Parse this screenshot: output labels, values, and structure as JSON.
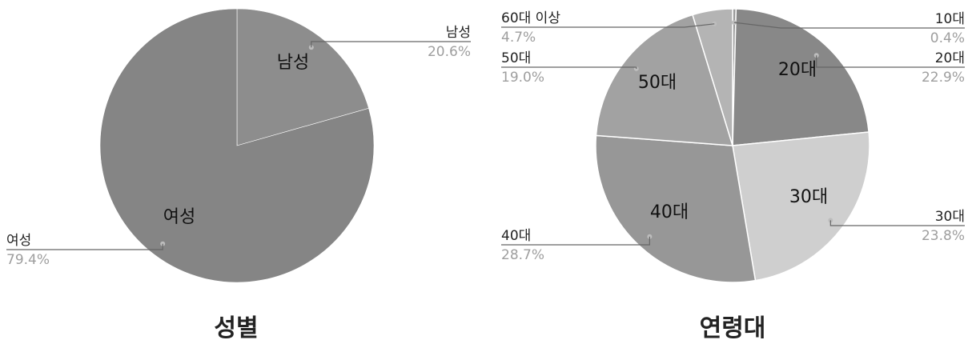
{
  "chart_data": [
    {
      "type": "pie",
      "title": "성별",
      "slices": [
        {
          "label": "남성",
          "value": 20.6,
          "pct_label": "20.6%",
          "color": "#8d8d8d"
        },
        {
          "label": "여성",
          "value": 79.4,
          "pct_label": "79.4%",
          "color": "#858585"
        }
      ]
    },
    {
      "type": "pie",
      "title": "연령대",
      "slices": [
        {
          "label": "10대",
          "value": 0.4,
          "pct_label": "0.4%",
          "color": "#9a9a9a",
          "inner_label": ""
        },
        {
          "label": "20대",
          "value": 22.9,
          "pct_label": "22.9%",
          "color": "#888888",
          "inner_label": "20대"
        },
        {
          "label": "30대",
          "value": 23.8,
          "pct_label": "23.8%",
          "color": "#cfcfcf",
          "inner_label": "30대"
        },
        {
          "label": "40대",
          "value": 28.7,
          "pct_label": "28.7%",
          "color": "#979797",
          "inner_label": "40대"
        },
        {
          "label": "50대",
          "value": 19.0,
          "pct_label": "19.0%",
          "color": "#a2a2a2",
          "inner_label": "50대"
        },
        {
          "label": "60대 이상",
          "value": 4.7,
          "pct_label": "4.7%",
          "color": "#b4b4b4",
          "inner_label": ""
        }
      ]
    }
  ],
  "colors": {
    "label_text": "#222222",
    "pct_text": "#9e9e9e",
    "leader_line": "#666666"
  }
}
